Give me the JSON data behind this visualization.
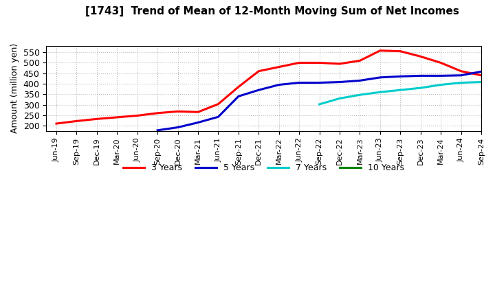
{
  "title": "[1743]  Trend of Mean of 12-Month Moving Sum of Net Incomes",
  "ylabel": "Amount (million yen)",
  "background_color": "#ffffff",
  "grid_color": "#aaaaaa",
  "x_labels": [
    "Jun-19",
    "Sep-19",
    "Dec-19",
    "Mar-20",
    "Jun-20",
    "Sep-20",
    "Dec-20",
    "Mar-21",
    "Jun-21",
    "Sep-21",
    "Dec-21",
    "Mar-22",
    "Jun-22",
    "Sep-22",
    "Dec-22",
    "Mar-23",
    "Jun-23",
    "Sep-23",
    "Dec-23",
    "Mar-24",
    "Jun-24",
    "Sep-24"
  ],
  "ylim": [
    175,
    580
  ],
  "yticks": [
    200,
    250,
    300,
    350,
    400,
    450,
    500,
    550
  ],
  "series": {
    "3yr": {
      "color": "#ff0000",
      "label": "3 Years",
      "x": [
        0,
        1,
        2,
        3,
        4,
        5,
        6,
        7,
        8,
        9,
        10,
        11,
        12,
        13,
        14,
        15,
        16,
        17,
        18,
        19,
        20,
        21
      ],
      "y": [
        210,
        222,
        232,
        240,
        248,
        260,
        268,
        265,
        303,
        385,
        460,
        480,
        500,
        500,
        495,
        510,
        558,
        555,
        530,
        500,
        460,
        440
      ]
    },
    "5yr": {
      "color": "#0000cc",
      "label": "5 Years",
      "x": [
        5,
        6,
        7,
        8,
        9,
        10,
        11,
        12,
        13,
        14,
        15,
        16,
        17,
        18,
        19,
        20,
        21
      ],
      "y": [
        178,
        192,
        215,
        242,
        340,
        370,
        395,
        405,
        405,
        408,
        415,
        430,
        435,
        438,
        438,
        440,
        458
      ]
    },
    "7yr": {
      "color": "#00cccc",
      "label": "7 Years",
      "x": [
        13,
        14,
        15,
        16,
        17,
        18,
        19,
        20,
        21
      ],
      "y": [
        302,
        330,
        347,
        360,
        370,
        380,
        395,
        405,
        408
      ]
    },
    "10yr": {
      "color": "#008000",
      "label": "10 Years",
      "x": [],
      "y": []
    }
  },
  "legend_colors": [
    "#ff0000",
    "#0000cc",
    "#00cccc",
    "#008000"
  ],
  "legend_labels": [
    "3 Years",
    "5 Years",
    "7 Years",
    "10 Years"
  ]
}
